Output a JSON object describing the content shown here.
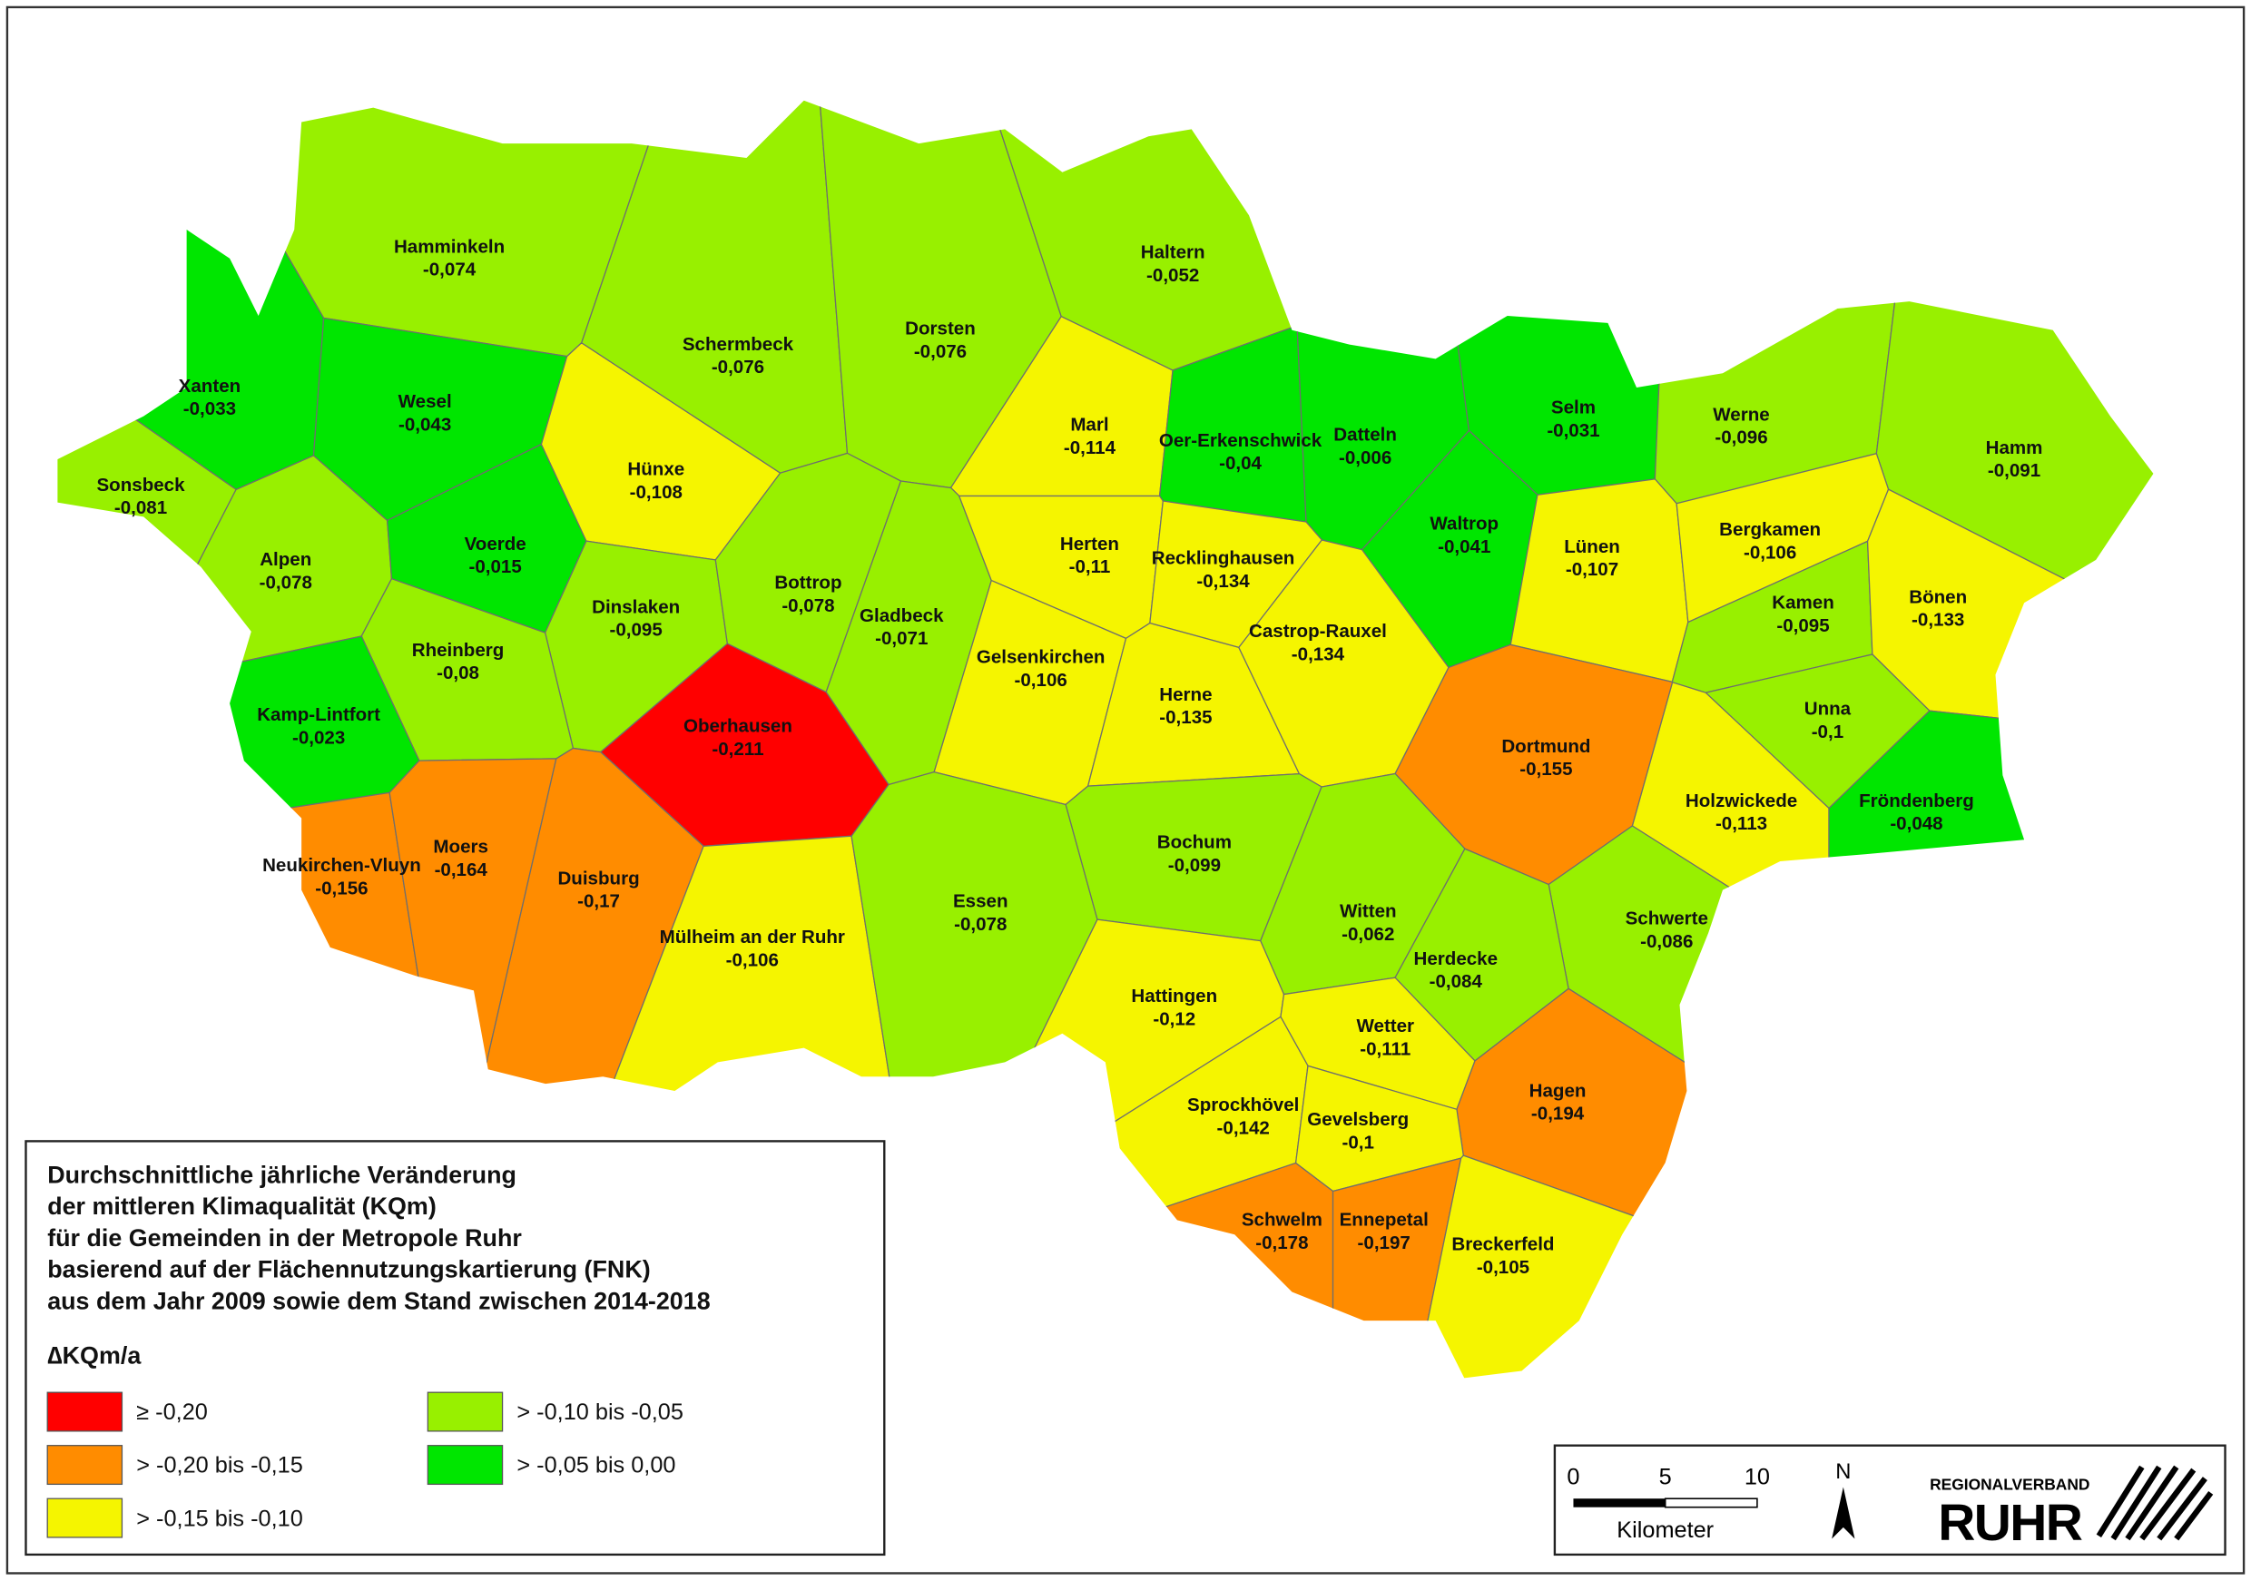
{
  "map": {
    "municipalities": [
      {
        "name": "Hamminkeln",
        "value": "-0,074",
        "color": "#98f000"
      },
      {
        "name": "Xanten",
        "value": "-0,033",
        "color": "#00e600"
      },
      {
        "name": "Wesel",
        "value": "-0,043",
        "color": "#00e600"
      },
      {
        "name": "Sonsbeck",
        "value": "-0,081",
        "color": "#98f000"
      },
      {
        "name": "Alpen",
        "value": "-0,078",
        "color": "#98f000"
      },
      {
        "name": "Voerde",
        "value": "-0,015",
        "color": "#00e600"
      },
      {
        "name": "Hünxe",
        "value": "-0,108",
        "color": "#f5f500"
      },
      {
        "name": "Schermbeck",
        "value": "-0,076",
        "color": "#98f000"
      },
      {
        "name": "Dorsten",
        "value": "-0,076",
        "color": "#98f000"
      },
      {
        "name": "Haltern",
        "value": "-0,052",
        "color": "#98f000"
      },
      {
        "name": "Marl",
        "value": "-0,114",
        "color": "#f5f500"
      },
      {
        "name": "Oer-Erkenschwick",
        "value": "-0,04",
        "color": "#00e600"
      },
      {
        "name": "Datteln",
        "value": "-0,006",
        "color": "#00e600"
      },
      {
        "name": "Selm",
        "value": "-0,031",
        "color": "#00e600"
      },
      {
        "name": "Werne",
        "value": "-0,096",
        "color": "#98f000"
      },
      {
        "name": "Hamm",
        "value": "-0,091",
        "color": "#98f000"
      },
      {
        "name": "Dinslaken",
        "value": "-0,095",
        "color": "#98f000"
      },
      {
        "name": "Bottrop",
        "value": "-0,078",
        "color": "#98f000"
      },
      {
        "name": "Gladbeck",
        "value": "-0,071",
        "color": "#98f000"
      },
      {
        "name": "Herten",
        "value": "-0,11",
        "color": "#f5f500"
      },
      {
        "name": "Recklinghausen",
        "value": "-0,134",
        "color": "#f5f500"
      },
      {
        "name": "Waltrop",
        "value": "-0,041",
        "color": "#00e600"
      },
      {
        "name": "Lünen",
        "value": "-0,107",
        "color": "#f5f500"
      },
      {
        "name": "Bergkamen",
        "value": "-0,106",
        "color": "#f5f500"
      },
      {
        "name": "Kamen",
        "value": "-0,095",
        "color": "#98f000"
      },
      {
        "name": "Bönen",
        "value": "-0,133",
        "color": "#f5f500"
      },
      {
        "name": "Rheinberg",
        "value": "-0,08",
        "color": "#98f000"
      },
      {
        "name": "Kamp-Lintfort",
        "value": "-0,023",
        "color": "#00e600"
      },
      {
        "name": "Oberhausen",
        "value": "-0,211",
        "color": "#ff0000"
      },
      {
        "name": "Gelsenkirchen",
        "value": "-0,106",
        "color": "#f5f500"
      },
      {
        "name": "Herne",
        "value": "-0,135",
        "color": "#f5f500"
      },
      {
        "name": "Castrop-Rauxel",
        "value": "-0,134",
        "color": "#f5f500"
      },
      {
        "name": "Dortmund",
        "value": "-0,155",
        "color": "#ff8c00"
      },
      {
        "name": "Unna",
        "value": "-0,1",
        "color": "#98f000"
      },
      {
        "name": "Holzwickede",
        "value": "-0,113",
        "color": "#f5f500"
      },
      {
        "name": "Fröndenberg",
        "value": "-0,048",
        "color": "#00e600"
      },
      {
        "name": "Neukirchen-Vluyn",
        "value": "-0,156",
        "color": "#ff8c00"
      },
      {
        "name": "Moers",
        "value": "-0,164",
        "color": "#ff8c00"
      },
      {
        "name": "Duisburg",
        "value": "-0,17",
        "color": "#ff8c00"
      },
      {
        "name": "Mülheim an der Ruhr",
        "value": "-0,106",
        "color": "#f5f500"
      },
      {
        "name": "Essen",
        "value": "-0,078",
        "color": "#98f000"
      },
      {
        "name": "Bochum",
        "value": "-0,099",
        "color": "#98f000"
      },
      {
        "name": "Witten",
        "value": "-0,062",
        "color": "#98f000"
      },
      {
        "name": "Schwerte",
        "value": "-0,086",
        "color": "#98f000"
      },
      {
        "name": "Herdecke",
        "value": "-0,084",
        "color": "#98f000"
      },
      {
        "name": "Hattingen",
        "value": "-0,12",
        "color": "#f5f500"
      },
      {
        "name": "Wetter",
        "value": "-0,111",
        "color": "#f5f500"
      },
      {
        "name": "Hagen",
        "value": "-0,194",
        "color": "#ff8c00"
      },
      {
        "name": "Sprockhövel",
        "value": "-0,142",
        "color": "#f5f500"
      },
      {
        "name": "Gevelsberg",
        "value": "-0,1",
        "color": "#f5f500"
      },
      {
        "name": "Schwelm",
        "value": "-0,178",
        "color": "#ff8c00"
      },
      {
        "name": "Ennepetal",
        "value": "-0,197",
        "color": "#ff8c00"
      },
      {
        "name": "Breckerfeld",
        "value": "-0,105",
        "color": "#f5f500"
      }
    ]
  },
  "legend": {
    "title_lines": [
      "Durchschnittliche jährliche Veränderung",
      "der mittleren Klimaqualität (KQm)",
      "für die Gemeinden in der Metropole Ruhr",
      "basierend auf der Flächennutzungskartierung (FNK)",
      "aus dem Jahr 2009 sowie dem Stand zwischen 2014-2018"
    ],
    "unit": "∆KQm/a",
    "items": [
      {
        "label": "≥ -0,20",
        "color": "#ff0000"
      },
      {
        "label": "> -0,20 bis -0,15",
        "color": "#ff8c00"
      },
      {
        "label": "> -0,15 bis -0,10",
        "color": "#f5f500"
      },
      {
        "label": "> -0,10 bis -0,05",
        "color": "#98f000"
      },
      {
        "label": "> -0,05 bis 0,00",
        "color": "#00e600"
      }
    ]
  },
  "scale": {
    "ticks": [
      "0",
      "5",
      "10"
    ],
    "unit": "Kilometer",
    "north": "N"
  },
  "logo": {
    "top": "REGIONALVERBAND",
    "main": "RUHR"
  }
}
